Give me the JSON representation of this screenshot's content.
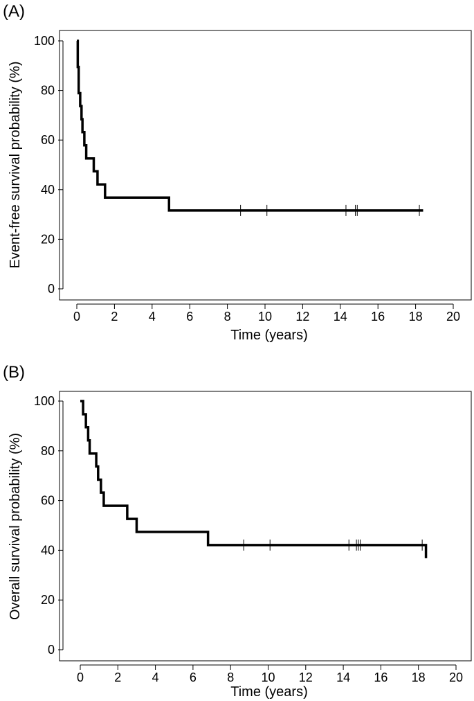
{
  "chart_data": [
    {
      "type": "line",
      "step": true,
      "panel_label": "(A)",
      "xlabel": "Time (years)",
      "ylabel": "Event-free survival probability (%)",
      "xlim": [
        0,
        20
      ],
      "ylim": [
        0,
        100
      ],
      "xticks": [
        "0",
        "2",
        "4",
        "6",
        "8",
        "10",
        "12",
        "14",
        "16",
        "18",
        "20"
      ],
      "yticks": [
        "0",
        "20",
        "40",
        "60",
        "80",
        "100"
      ],
      "grid": false,
      "series": [
        {
          "x": [
            0,
            0.05,
            0.1,
            0.18,
            0.25,
            0.3,
            0.4,
            0.5,
            0.9,
            1.1,
            1.5,
            4.9,
            18.4
          ],
          "y": [
            100,
            89.5,
            78.9,
            73.7,
            68.4,
            63.2,
            57.9,
            52.6,
            47.4,
            42.1,
            36.8,
            31.6,
            31.6
          ],
          "censored": [
            8.7,
            10.1,
            14.3,
            14.8,
            14.9,
            18.2
          ]
        }
      ]
    },
    {
      "type": "line",
      "step": true,
      "panel_label": "(B)",
      "xlabel": "Time (years)",
      "ylabel": "Overall survival probability (%)",
      "xlim": [
        0,
        20
      ],
      "ylim": [
        0,
        100
      ],
      "xticks": [
        "0",
        "2",
        "4",
        "6",
        "8",
        "10",
        "12",
        "14",
        "16",
        "18",
        "20"
      ],
      "yticks": [
        "0",
        "20",
        "40",
        "60",
        "80",
        "100"
      ],
      "grid": false,
      "series": [
        {
          "x": [
            0,
            0.15,
            0.3,
            0.42,
            0.5,
            0.85,
            0.95,
            1.1,
            1.25,
            2.5,
            3.0,
            6.8,
            18.4
          ],
          "y": [
            100,
            94.7,
            89.5,
            84.2,
            78.9,
            73.7,
            68.4,
            63.2,
            57.9,
            52.6,
            47.4,
            42.1,
            36.8
          ],
          "censored": [
            8.7,
            10.1,
            14.3,
            14.7,
            14.8,
            14.9,
            18.2
          ]
        }
      ]
    }
  ]
}
